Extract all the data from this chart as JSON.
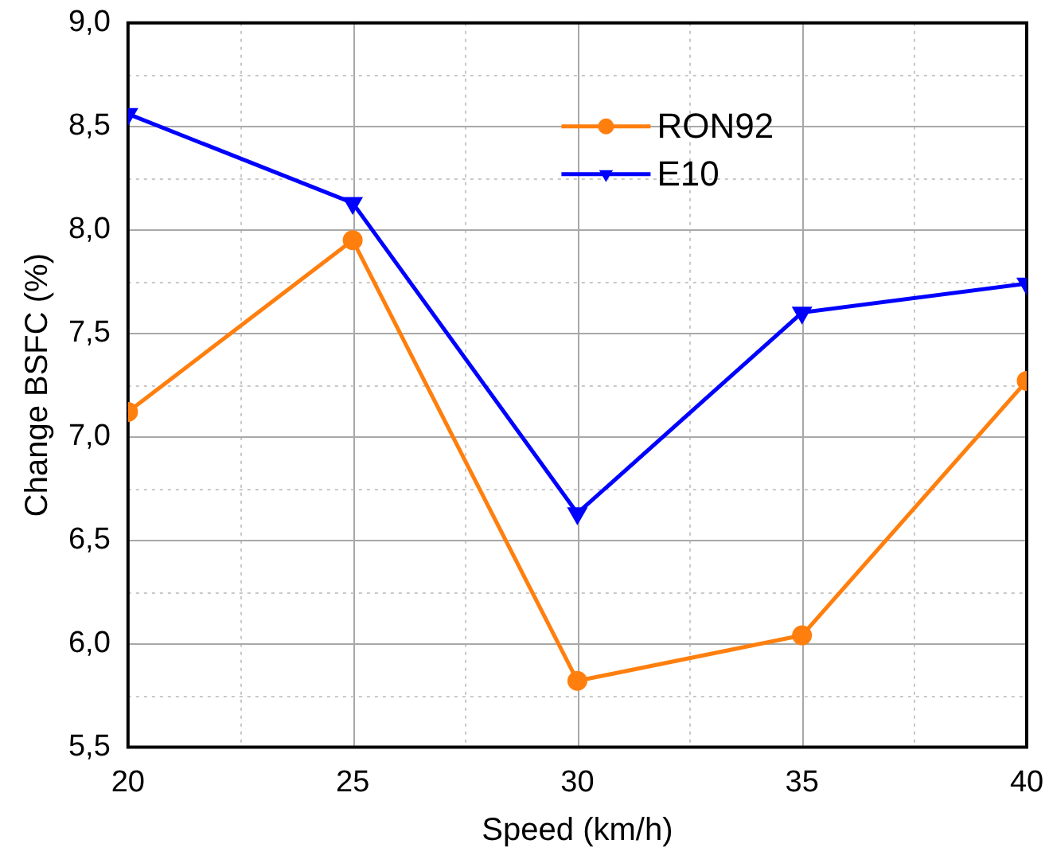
{
  "chart_data": {
    "type": "line",
    "xlabel": "Speed (km/h)",
    "ylabel": "Change BSFC (%)",
    "x": [
      20,
      25,
      30,
      35,
      40
    ],
    "xlim": [
      20,
      40
    ],
    "xticks": [
      20,
      {
        "value": 22.5,
        "label": null
      },
      25,
      {
        "value": 27.5,
        "label": null
      },
      30,
      {
        "value": 32.5,
        "label": null
      },
      35,
      {
        "value": 37.5,
        "label": null
      },
      40
    ],
    "ylim": [
      5.5,
      9
    ],
    "yticks": [
      {
        "value": 5.5,
        "label": "5,5"
      },
      {
        "value": 5.75,
        "label": null
      },
      {
        "value": 6,
        "label": "6,0"
      },
      {
        "value": 6.25,
        "label": null
      },
      {
        "value": 6.5,
        "label": "6,5"
      },
      {
        "value": 6.75,
        "label": null
      },
      {
        "value": 7,
        "label": "7,0"
      },
      {
        "value": 7.25,
        "label": null
      },
      {
        "value": 7.5,
        "label": "7,5"
      },
      {
        "value": 7.75,
        "label": null
      },
      {
        "value": 8,
        "label": "8,0"
      },
      {
        "value": 8.25,
        "label": null
      },
      {
        "value": 8.5,
        "label": "8,5"
      },
      {
        "value": 8.75,
        "label": null
      },
      {
        "value": 9,
        "label": "9,0"
      }
    ],
    "grid": true,
    "legend": "top",
    "line_style": "solid",
    "series": [
      {
        "name": "RON92",
        "color": "#ff7f0e",
        "marker": "circle",
        "values": [
          7.12,
          7.95,
          5.82,
          6.04,
          7.27
        ]
      },
      {
        "name": "E10",
        "color": "#0000ff",
        "marker": "triangle",
        "values": [
          8.56,
          8.13,
          6.63,
          7.6,
          7.74
        ]
      }
    ]
  }
}
